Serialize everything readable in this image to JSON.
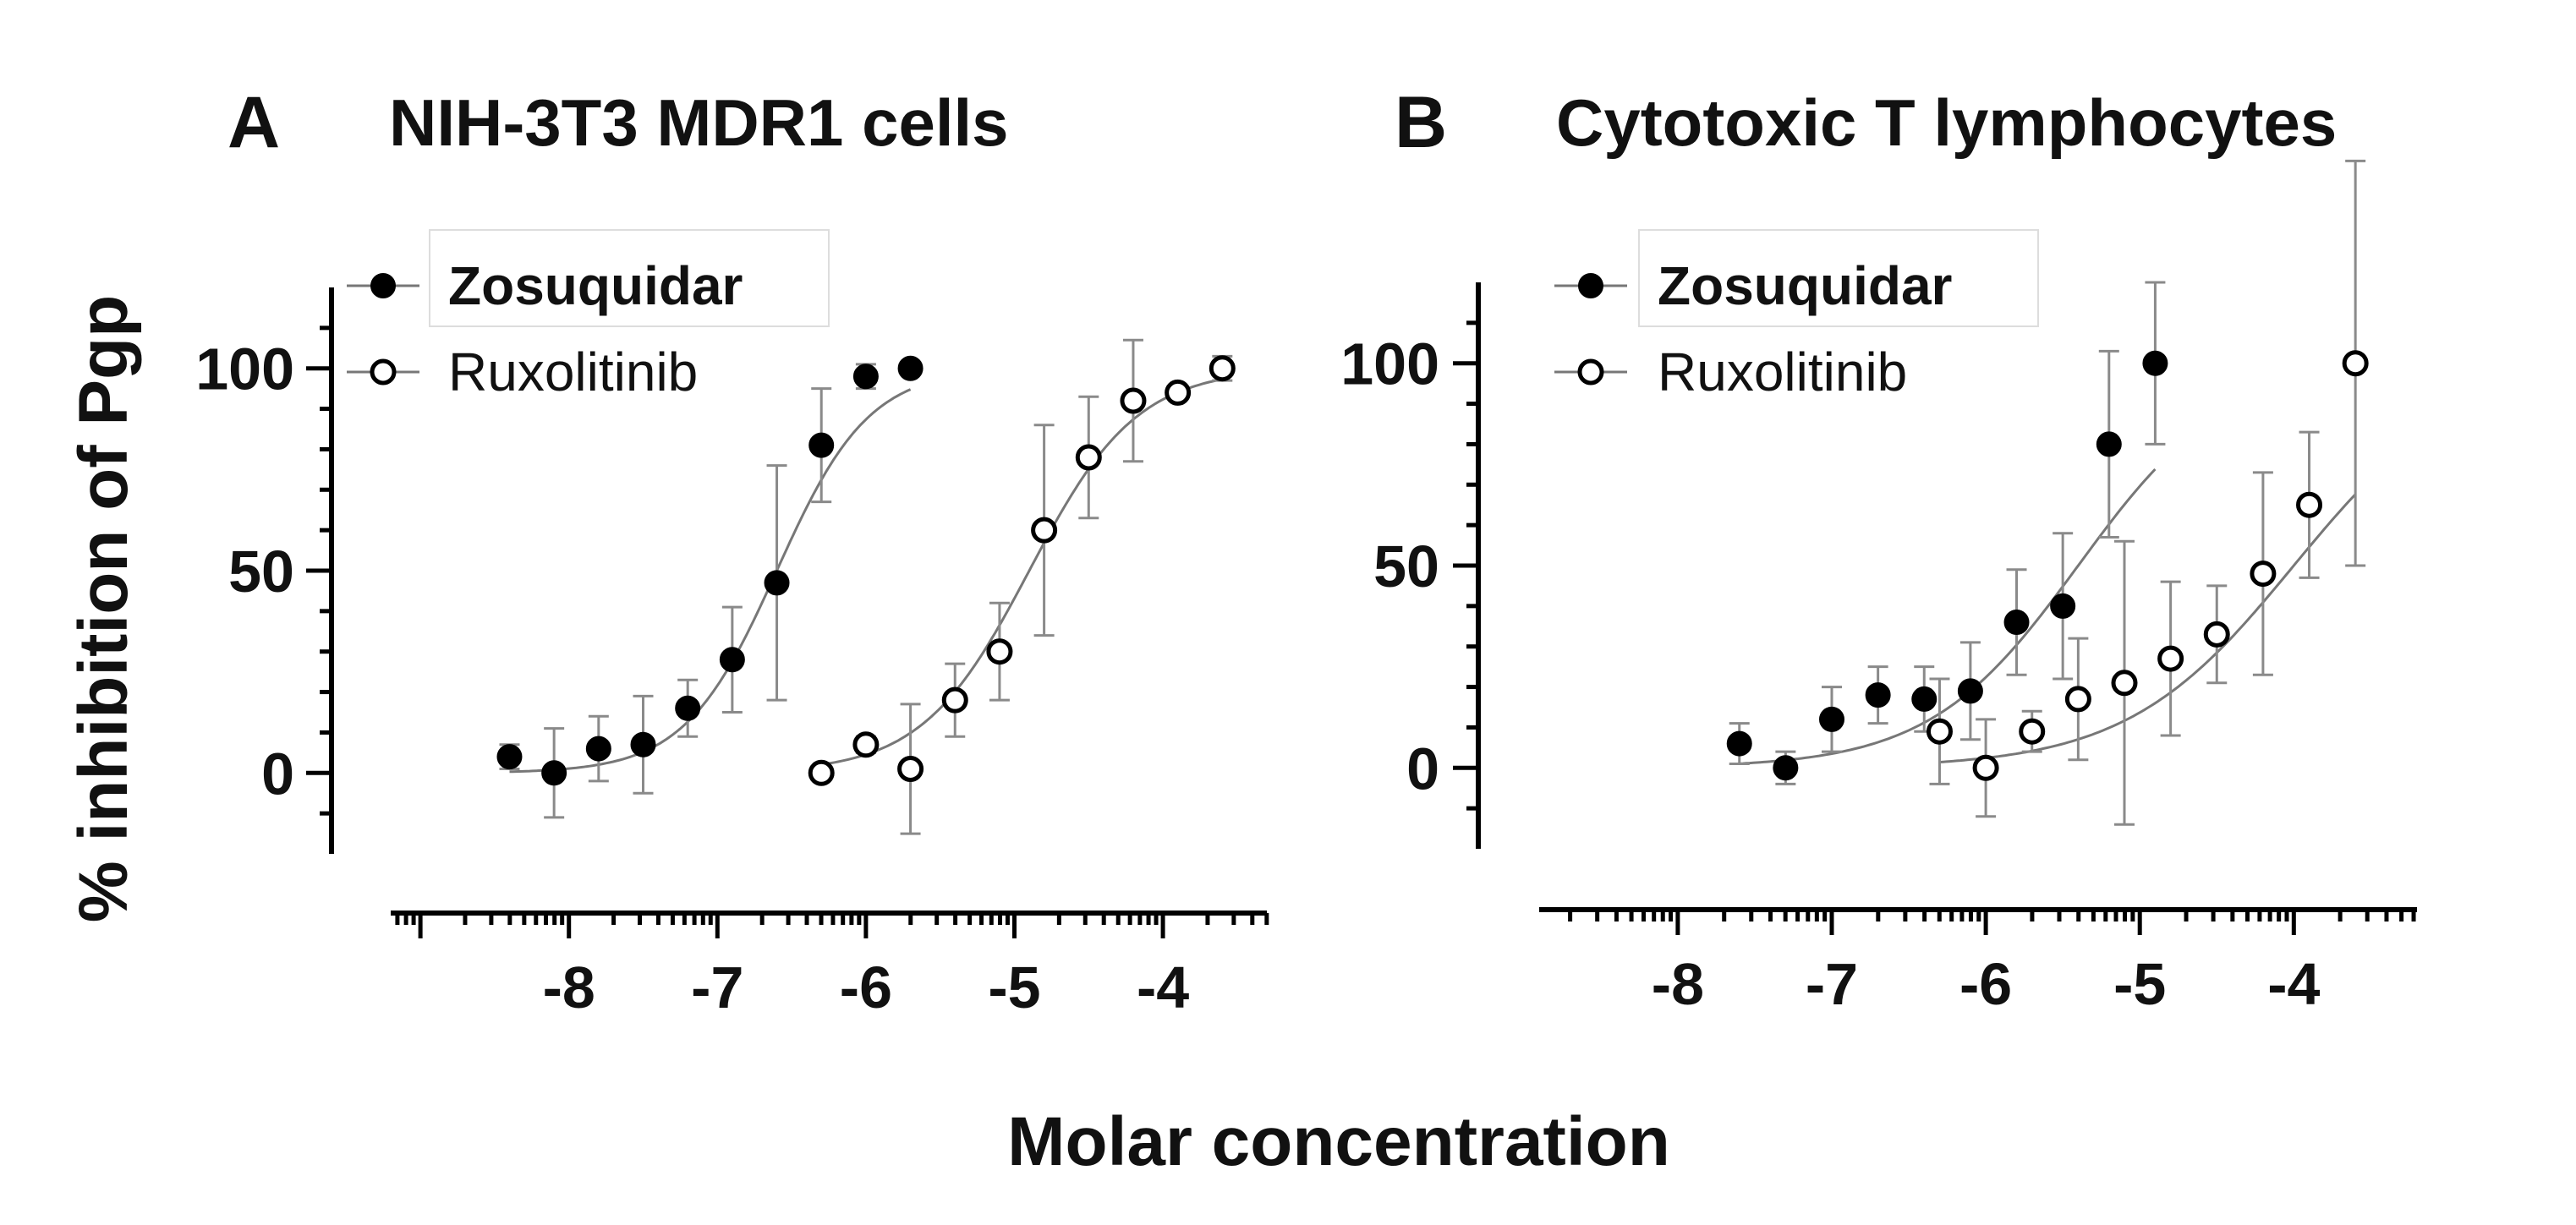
{
  "x_axis_label": "Molar concentration",
  "y_axis_label": "% inhibition of Pgp",
  "chart_data": [
    {
      "type": "scatter",
      "panel_letter": "A",
      "title": "NIH-3T3 MDR1 cells",
      "xlabel": "Molar concentration",
      "ylabel": "% inhibition of Pgp",
      "xlim": [
        -9.2,
        -3.3
      ],
      "ylim": [
        -20,
        120
      ],
      "xticks": [
        -8,
        -7,
        -6,
        -5,
        -4
      ],
      "xtick_labels": [
        "-8",
        "-7",
        "-6",
        "-5",
        "-4"
      ],
      "yticks": [
        0,
        50,
        100
      ],
      "ytick_labels": [
        "0",
        "50",
        "100"
      ],
      "legend_position": "top-left",
      "series": [
        {
          "name": "Zosuquidar",
          "marker": "filled-circle",
          "x": [
            -8.4,
            -8.1,
            -7.8,
            -7.5,
            -7.2,
            -6.9,
            -6.6,
            -6.3,
            -6.0,
            -5.7
          ],
          "y": [
            4,
            0,
            6,
            7,
            16,
            28,
            47,
            81,
            98,
            100
          ],
          "yerr": [
            3,
            11,
            8,
            12,
            7,
            13,
            29,
            14,
            3,
            1
          ],
          "fit": {
            "bottom": 0,
            "top": 100,
            "logEC50": -6.6,
            "hill": 1.4
          }
        },
        {
          "name": "Ruxolitinib",
          "marker": "open-circle",
          "x": [
            -6.3,
            -6.0,
            -5.7,
            -5.4,
            -5.1,
            -4.8,
            -4.5,
            -4.2,
            -3.9,
            -3.6
          ],
          "y": [
            0,
            7,
            1,
            18,
            30,
            60,
            78,
            92,
            94,
            100
          ],
          "yerr": [
            1,
            2,
            16,
            9,
            12,
            26,
            15,
            15,
            1,
            3
          ],
          "fit": {
            "bottom": 0,
            "top": 100,
            "logEC50": -4.9,
            "hill": 1.2
          }
        }
      ]
    },
    {
      "type": "scatter",
      "panel_letter": "B",
      "title": "Cytotoxic T lymphocytes",
      "xlabel": "Molar concentration",
      "ylabel": "% inhibition of Pgp",
      "xlim": [
        -8.9,
        -3.2
      ],
      "ylim": [
        -20,
        120
      ],
      "xticks": [
        -8,
        -7,
        -6,
        -5,
        -4
      ],
      "xtick_labels": [
        "-8",
        "-7",
        "-6",
        "-5",
        "-4"
      ],
      "yticks": [
        0,
        50,
        100
      ],
      "ytick_labels": [
        "0",
        "50",
        "100"
      ],
      "legend_position": "top-left",
      "series": [
        {
          "name": "Zosuquidar",
          "marker": "filled-circle",
          "x": [
            -7.6,
            -7.3,
            -7.0,
            -6.7,
            -6.4,
            -6.1,
            -5.8,
            -5.5,
            -5.2,
            -4.9
          ],
          "y": [
            6,
            0,
            12,
            18,
            17,
            19,
            36,
            40,
            80,
            100
          ],
          "yerr": [
            5,
            4,
            8,
            7,
            8,
            12,
            13,
            18,
            23,
            20
          ],
          "fit": {
            "bottom": 0,
            "top": 100,
            "logEC50": -5.4,
            "hill": 0.9
          }
        },
        {
          "name": "Ruxolitinib",
          "marker": "open-circle",
          "x": [
            -6.3,
            -6.0,
            -5.7,
            -5.4,
            -5.1,
            -4.8,
            -4.5,
            -4.2,
            -3.9,
            -3.6
          ],
          "y": [
            9,
            0,
            9,
            17,
            21,
            27,
            33,
            48,
            65,
            100
          ],
          "yerr": [
            13,
            12,
            5,
            15,
            35,
            19,
            12,
            25,
            18,
            50
          ],
          "fit": {
            "bottom": 0,
            "top": 100,
            "logEC50": -4.0,
            "hill": 0.8
          }
        }
      ]
    }
  ]
}
